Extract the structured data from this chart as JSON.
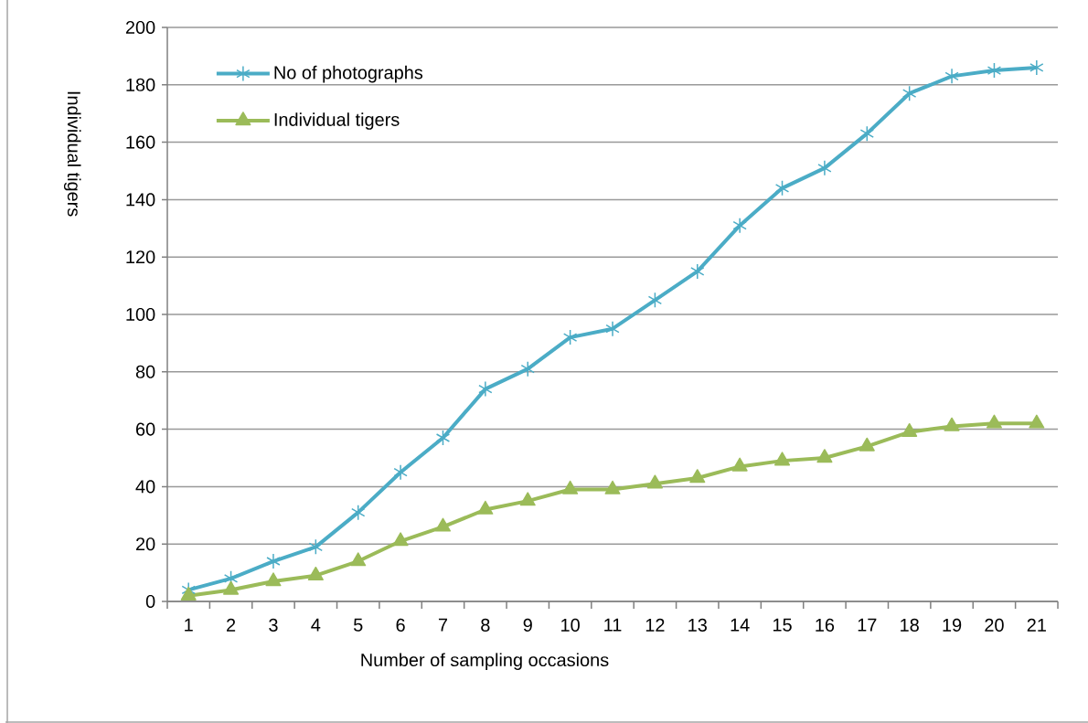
{
  "chart_data": {
    "type": "line",
    "xlabel": "Number of sampling occasions",
    "ylabel": "Individual tigers",
    "categories": [
      "1",
      "2",
      "3",
      "4",
      "5",
      "6",
      "7",
      "8",
      "9",
      "10",
      "11",
      "12",
      "13",
      "14",
      "15",
      "16",
      "17",
      "18",
      "19",
      "20",
      "21"
    ],
    "series": [
      {
        "name": "No of photographs",
        "color": "#4bacc6",
        "marker": "cross",
        "values": [
          4,
          8,
          14,
          19,
          31,
          45,
          57,
          74,
          81,
          92,
          95,
          105,
          115,
          131,
          144,
          151,
          163,
          177,
          183,
          185,
          186
        ]
      },
      {
        "name": "Individual tigers",
        "color": "#9bbb59",
        "marker": "triangle",
        "values": [
          2,
          4,
          7,
          9,
          14,
          21,
          26,
          32,
          35,
          39,
          39,
          41,
          43,
          47,
          49,
          50,
          54,
          59,
          61,
          62,
          62
        ]
      }
    ],
    "ylim": [
      0,
      200
    ],
    "yticks": [
      0,
      20,
      40,
      60,
      80,
      100,
      120,
      140,
      160,
      180,
      200
    ],
    "grid": "y",
    "legend": "top left",
    "line_style": "solid"
  }
}
